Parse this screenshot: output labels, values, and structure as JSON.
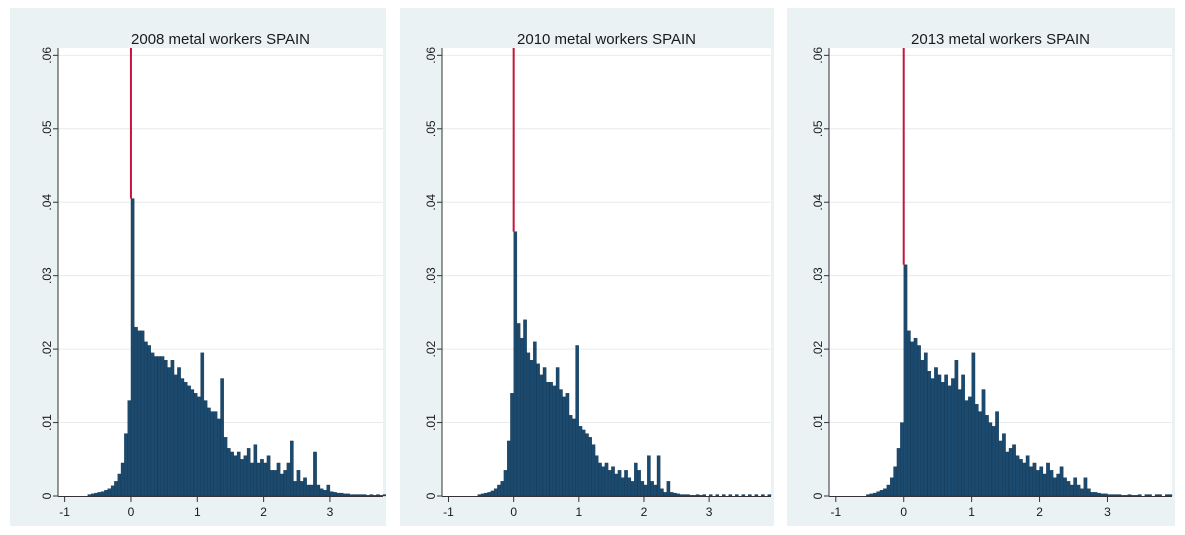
{
  "colors": {
    "bar_fill": "#1b4a6e",
    "bar_edge": "#0f2f4a",
    "zero_line": "#c8143c",
    "panel_background": "#eaf2f3",
    "plot_background": "#ffffff",
    "gridline": "#e6ebee"
  },
  "chart_data": [
    {
      "type": "bar",
      "title": "2008 metal workers SPAIN",
      "xlim": [
        -1.1,
        3.8
      ],
      "ylim": [
        0,
        0.061
      ],
      "xticks": [
        "-1",
        "0",
        "1",
        "2",
        "3"
      ],
      "yticks": [
        "0",
        ".01",
        ".02",
        ".03",
        ".04",
        ".05",
        ".06"
      ],
      "xtick_values": [
        -1,
        0,
        1,
        2,
        3
      ],
      "ytick_values": [
        0,
        0.01,
        0.02,
        0.03,
        0.04,
        0.05,
        0.06
      ],
      "grid": true,
      "vertical_line": {
        "x": 0,
        "top": 0.061
      },
      "bins": {
        "start": -0.65,
        "width": 0.05,
        "values": [
          0.0002,
          0.0003,
          0.0004,
          0.0005,
          0.0006,
          0.0008,
          0.001,
          0.0014,
          0.002,
          0.003,
          0.0045,
          0.0085,
          0.013,
          0.0405,
          0.023,
          0.0225,
          0.0225,
          0.021,
          0.0205,
          0.0195,
          0.019,
          0.019,
          0.019,
          0.0185,
          0.0175,
          0.0185,
          0.0165,
          0.0175,
          0.016,
          0.0155,
          0.015,
          0.0145,
          0.014,
          0.0135,
          0.0195,
          0.013,
          0.012,
          0.0115,
          0.0115,
          0.0105,
          0.016,
          0.008,
          0.0065,
          0.006,
          0.0055,
          0.006,
          0.005,
          0.0055,
          0.0065,
          0.0045,
          0.007,
          0.0045,
          0.005,
          0.0045,
          0.0055,
          0.0035,
          0.0035,
          0.0045,
          0.003,
          0.0035,
          0.0045,
          0.0075,
          0.002,
          0.0035,
          0.002,
          0.0025,
          0.0015,
          0.0015,
          0.006,
          0.0015,
          0.001,
          0.0008,
          0.0015,
          0.0006,
          0.0005,
          0.0004,
          0.0004,
          0.0003,
          0.0003,
          0.0002,
          0.0002,
          0.0002,
          0.0002,
          0.0002,
          0.0001,
          0.0002,
          0.0001,
          0.0002,
          0.0001,
          0.0002,
          0,
          0.0001,
          0,
          0.0002,
          0,
          0.0002,
          0,
          0.0001,
          0,
          0.0002,
          0,
          0,
          0.0002,
          0,
          0,
          0,
          0,
          0.0002
        ]
      }
    },
    {
      "type": "bar",
      "title": "2010 metal workers SPAIN",
      "xlim": [
        -1.1,
        3.95
      ],
      "ylim": [
        0,
        0.061
      ],
      "xticks": [
        "-1",
        "0",
        "1",
        "2",
        "3"
      ],
      "yticks": [
        "0",
        ".01",
        ".02",
        ".03",
        ".04",
        ".05",
        ".06"
      ],
      "xtick_values": [
        -1,
        0,
        1,
        2,
        3
      ],
      "ytick_values": [
        0,
        0.01,
        0.02,
        0.03,
        0.04,
        0.05,
        0.06
      ],
      "grid": true,
      "vertical_line": {
        "x": 0,
        "top": 0.061
      },
      "bins": {
        "start": -0.55,
        "width": 0.05,
        "values": [
          0.0002,
          0.0003,
          0.0004,
          0.0005,
          0.0007,
          0.001,
          0.0015,
          0.002,
          0.0035,
          0.0075,
          0.014,
          0.036,
          0.0235,
          0.0215,
          0.024,
          0.0195,
          0.0185,
          0.021,
          0.018,
          0.0165,
          0.0175,
          0.0155,
          0.0155,
          0.015,
          0.0175,
          0.0145,
          0.0135,
          0.014,
          0.011,
          0.0105,
          0.0205,
          0.0095,
          0.009,
          0.0085,
          0.008,
          0.007,
          0.0055,
          0.0045,
          0.004,
          0.0045,
          0.0035,
          0.004,
          0.003,
          0.0035,
          0.0025,
          0.0035,
          0.0025,
          0.002,
          0.0045,
          0.0035,
          0.002,
          0.0015,
          0.0055,
          0.002,
          0.0015,
          0.0055,
          0.001,
          0.0005,
          0.002,
          0.0005,
          0.0004,
          0.0003,
          0.0002,
          0.0002,
          0.0002,
          0.0001,
          0.0001,
          0.0002,
          0.0001,
          0.0002,
          0,
          0.0002,
          0,
          0.0002,
          0,
          0.0002,
          0,
          0.0002,
          0,
          0.0002,
          0,
          0.0002,
          0,
          0.0002,
          0,
          0.0002,
          0,
          0.0002,
          0,
          0.0002
        ]
      }
    },
    {
      "type": "bar",
      "title": "2013 metal workers SPAIN",
      "xlim": [
        -1.1,
        3.95
      ],
      "ylim": [
        0,
        0.061
      ],
      "xticks": [
        "-1",
        "0",
        "1",
        "2",
        "3"
      ],
      "yticks": [
        "0",
        ".01",
        ".02",
        ".03",
        ".04",
        ".05",
        ".06"
      ],
      "xtick_values": [
        -1,
        0,
        1,
        2,
        3
      ],
      "ytick_values": [
        0,
        0.01,
        0.02,
        0.03,
        0.04,
        0.05,
        0.06
      ],
      "grid": true,
      "vertical_line": {
        "x": 0,
        "top": 0.061
      },
      "bins": {
        "start": -0.55,
        "width": 0.05,
        "values": [
          0.0002,
          0.0003,
          0.0004,
          0.0006,
          0.0008,
          0.001,
          0.0015,
          0.0025,
          0.004,
          0.0065,
          0.01,
          0.0315,
          0.0225,
          0.021,
          0.0215,
          0.0205,
          0.0185,
          0.0195,
          0.017,
          0.016,
          0.0175,
          0.0165,
          0.0155,
          0.0165,
          0.015,
          0.016,
          0.0185,
          0.0145,
          0.0165,
          0.013,
          0.0135,
          0.0195,
          0.0125,
          0.0115,
          0.0145,
          0.011,
          0.01,
          0.0095,
          0.0115,
          0.0075,
          0.0085,
          0.006,
          0.0065,
          0.007,
          0.0055,
          0.005,
          0.0045,
          0.0055,
          0.004,
          0.0045,
          0.0035,
          0.004,
          0.003,
          0.0045,
          0.0035,
          0.0025,
          0.003,
          0.004,
          0.0025,
          0.002,
          0.0015,
          0.0025,
          0.0015,
          0.001,
          0.0025,
          0.001,
          0.0005,
          0.0005,
          0.0004,
          0.0003,
          0.0003,
          0.0002,
          0.0002,
          0.0002,
          0.0002,
          0.0001,
          0.0001,
          0.0002,
          0.0001,
          0.0001,
          0.0002,
          0,
          0.0002,
          0.0002,
          0,
          0.0002,
          0.0002,
          0,
          0.0002,
          0.0002
        ]
      }
    }
  ]
}
